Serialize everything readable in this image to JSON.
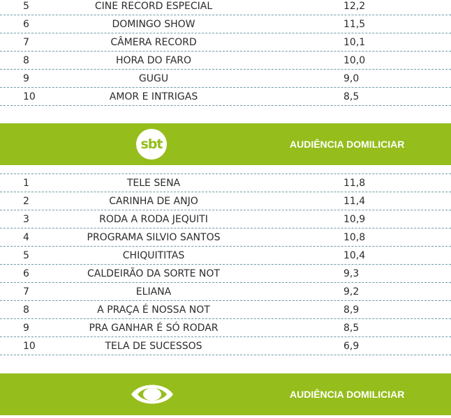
{
  "record_rows": [
    {
      "rank": "5",
      "name": "CINE RECORD ESPECIAL",
      "value": "12,2"
    },
    {
      "rank": "6",
      "name": "DOMINGO SHOW",
      "value": "11,5"
    },
    {
      "rank": "7",
      "name": "CÂMERA RECORD",
      "value": "10,1"
    },
    {
      "rank": "8",
      "name": "HORA DO FARO",
      "value": "10,0"
    },
    {
      "rank": "9",
      "name": "GUGU",
      "value": "9,0"
    },
    {
      "rank": "10",
      "name": "AMOR E INTRIGAS",
      "value": "8,5"
    }
  ],
  "sbt": {
    "logo_text": "sbt",
    "title": "AUDIÊNCIA DOMILICIAR",
    "rows": [
      {
        "rank": "1",
        "name": "TELE SENA",
        "value": "11,8"
      },
      {
        "rank": "2",
        "name": "CARINHA DE ANJO",
        "value": "11,4"
      },
      {
        "rank": "3",
        "name": "RODA A RODA JEQUITI",
        "value": "10,9"
      },
      {
        "rank": "4",
        "name": "PROGRAMA SILVIO SANTOS",
        "value": "10,8"
      },
      {
        "rank": "5",
        "name": "CHIQUITITAS",
        "value": "10,4"
      },
      {
        "rank": "6",
        "name": "CALDEIRÃO DA SORTE NOT",
        "value": "9,3"
      },
      {
        "rank": "7",
        "name": "ELIANA",
        "value": "9,2"
      },
      {
        "rank": "8",
        "name": "A PRAÇA É NOSSA NOT",
        "value": "8,9"
      },
      {
        "rank": "9",
        "name": "PRA GANHAR É SÓ RODAR",
        "value": "8,5"
      },
      {
        "rank": "10",
        "name": "TELA DE SUCESSOS",
        "value": "6,9"
      }
    ]
  },
  "band": {
    "logo_icon": "band-eye-icon",
    "title": "AUDIÊNCIA DOMILICIAR"
  },
  "colors": {
    "banner_green": "#95bd1c",
    "divider": "#6e9aa6",
    "text": "#2b2b2b"
  }
}
